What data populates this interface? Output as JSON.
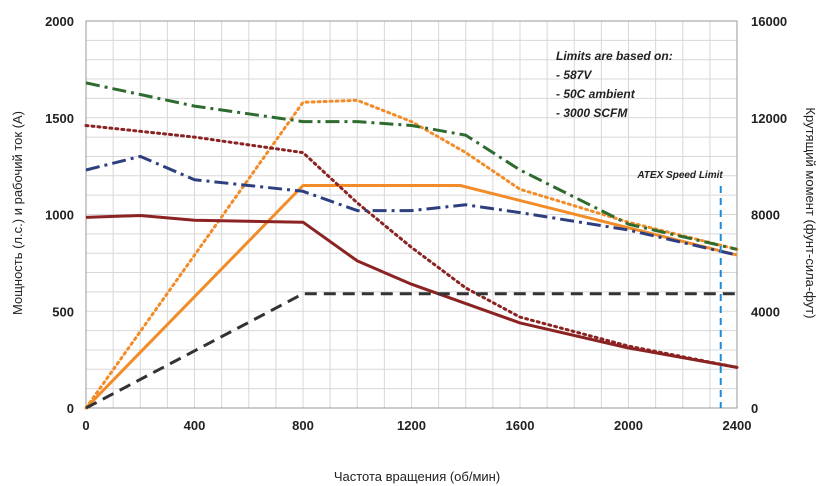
{
  "chart_data": {
    "type": "line",
    "xlabel": "Частота вращения (об/мин)",
    "ylabel_left": "Мощность (л.с.) и рабочий ток (A)",
    "ylabel_right": "Крутящий момент (фунт-сила-фут)",
    "xlim": [
      0,
      2400
    ],
    "ylim_left": [
      0,
      2000
    ],
    "ylim_right": [
      0,
      16000
    ],
    "x_ticks": [
      "0",
      "400",
      "800",
      "1200",
      "1600",
      "2000",
      "2400"
    ],
    "y_left_ticks": [
      "0",
      "500",
      "1000",
      "1500",
      "2000"
    ],
    "y_right_ticks": [
      "0",
      "4000",
      "8000",
      "12000",
      "16000"
    ],
    "grid": true,
    "annotation_lines": [
      "Limits are based on:",
      "- 587V",
      "- 50C ambient",
      "- 3000 SCFM"
    ],
    "speed_limit": {
      "label": "ATEX Speed Limit",
      "x": 2340
    },
    "series": [
      {
        "style": "solid",
        "color": "#f28c28",
        "axis": "left",
        "points": [
          [
            0,
            0
          ],
          [
            800,
            1150
          ],
          [
            1380,
            1150
          ],
          [
            2400,
            790
          ]
        ]
      },
      {
        "style": "dotted",
        "color": "#f28c28",
        "axis": "left",
        "points": [
          [
            0,
            0
          ],
          [
            800,
            1580
          ],
          [
            1000,
            1590
          ],
          [
            1200,
            1480
          ],
          [
            1400,
            1320
          ],
          [
            1600,
            1130
          ],
          [
            2000,
            960
          ],
          [
            2400,
            820
          ]
        ]
      },
      {
        "style": "solid",
        "color": "#8b2323",
        "axis": "left",
        "points": [
          [
            0,
            985
          ],
          [
            200,
            995
          ],
          [
            400,
            970
          ],
          [
            800,
            960
          ],
          [
            1000,
            760
          ],
          [
            1200,
            640
          ],
          [
            1600,
            440
          ],
          [
            2000,
            310
          ],
          [
            2400,
            210
          ]
        ]
      },
      {
        "style": "dotted",
        "color": "#8b2323",
        "axis": "left",
        "points": [
          [
            0,
            1460
          ],
          [
            200,
            1430
          ],
          [
            400,
            1400
          ],
          [
            800,
            1320
          ],
          [
            1000,
            1060
          ],
          [
            1200,
            830
          ],
          [
            1400,
            620
          ],
          [
            1600,
            470
          ],
          [
            2000,
            320
          ],
          [
            2400,
            210
          ]
        ]
      },
      {
        "style": "dash-dot",
        "color": "#2e6b2e",
        "axis": "left",
        "points": [
          [
            0,
            1680
          ],
          [
            200,
            1620
          ],
          [
            400,
            1560
          ],
          [
            800,
            1480
          ],
          [
            1000,
            1480
          ],
          [
            1200,
            1460
          ],
          [
            1400,
            1410
          ],
          [
            1600,
            1230
          ],
          [
            2000,
            950
          ],
          [
            2400,
            820
          ]
        ]
      },
      {
        "style": "dash-dot",
        "color": "#2e3f80",
        "axis": "left",
        "points": [
          [
            0,
            1230
          ],
          [
            200,
            1300
          ],
          [
            400,
            1180
          ],
          [
            800,
            1120
          ],
          [
            1000,
            1020
          ],
          [
            1200,
            1020
          ],
          [
            1400,
            1050
          ],
          [
            1600,
            1010
          ],
          [
            2000,
            920
          ],
          [
            2400,
            790
          ]
        ]
      },
      {
        "style": "dashed",
        "color": "#333333",
        "axis": "left",
        "points": [
          [
            0,
            0
          ],
          [
            800,
            590
          ],
          [
            2400,
            590
          ]
        ]
      }
    ]
  }
}
